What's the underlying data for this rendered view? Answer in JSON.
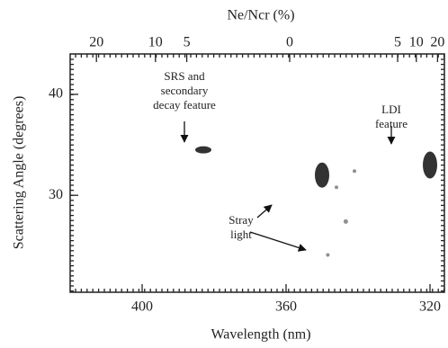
{
  "chart_data": {
    "type": "scatter",
    "xlabel": "Wavelength (nm)",
    "ylabel": "Scattering Angle (degrees)",
    "x2label": "Ne/Ncr (%)",
    "x": [
      383,
      350,
      320,
      343.4,
      348.4,
      346,
      341
    ],
    "values": [
      34.5,
      32,
      33,
      27.4,
      24.1,
      30.8,
      32.4
    ],
    "color": "#222",
    "xlim": [
      420,
      316
    ],
    "ylim": [
      20.4,
      44
    ],
    "xticks": [
      400,
      360,
      320
    ],
    "yticks": [
      30,
      40
    ],
    "x2ticks": [
      {
        "value": 412.7,
        "label": "20"
      },
      {
        "value": 396.3,
        "label": "10"
      },
      {
        "value": 387.6,
        "label": "5"
      },
      {
        "value": 359,
        "label": "0"
      },
      {
        "value": 329,
        "label": "5"
      },
      {
        "value": 323.8,
        "label": "10"
      },
      {
        "value": 317.9,
        "label": "20"
      }
    ],
    "annotations": [
      [
        "SRS and",
        "secondary",
        "decay feature"
      ],
      [
        "LDI",
        "feature"
      ],
      [
        "Stray",
        "light"
      ]
    ]
  }
}
